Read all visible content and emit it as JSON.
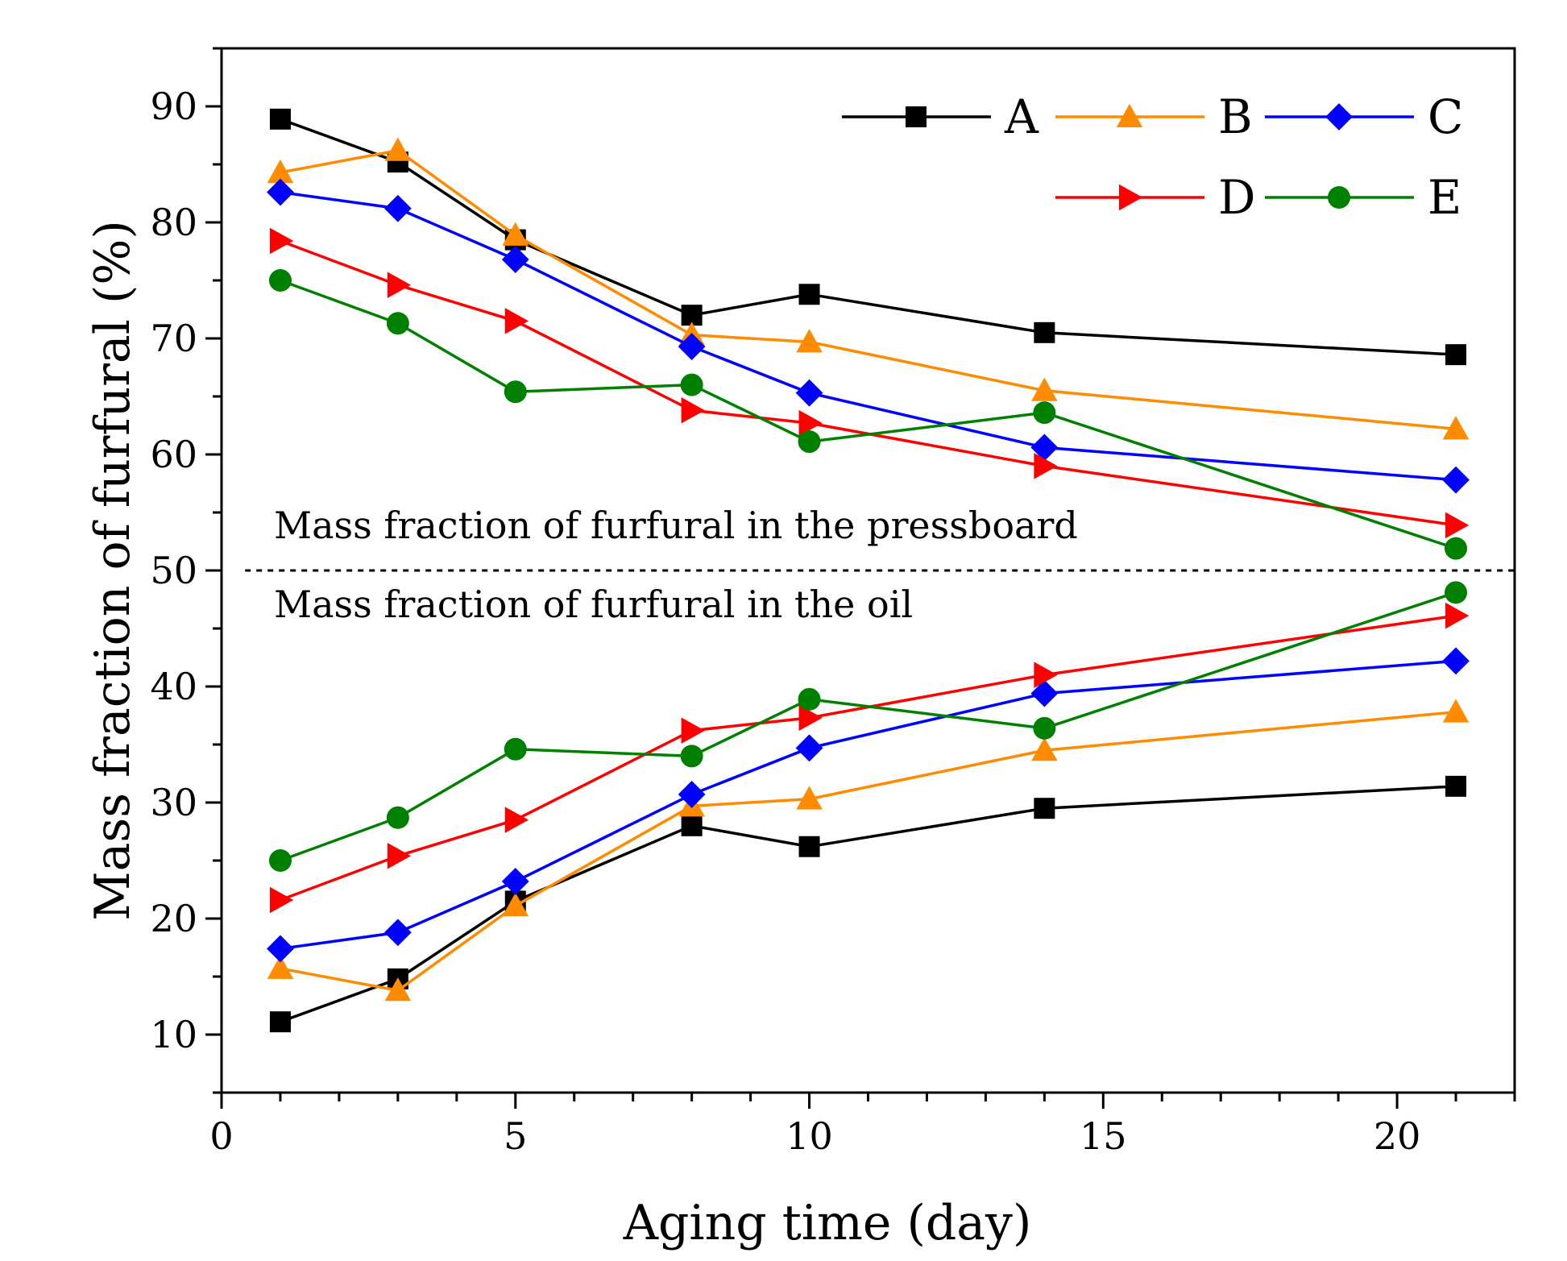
{
  "chart_data": {
    "type": "line",
    "title": "",
    "xlabel": "Aging time (day)",
    "ylabel": "Mass fraction of furfural (%)",
    "xlim": [
      0,
      22
    ],
    "ylim": [
      5,
      95
    ],
    "x_ticks": [
      0,
      5,
      10,
      15,
      20
    ],
    "x_tick_labels": [
      "0",
      "5",
      "10",
      "15",
      "20"
    ],
    "y_ticks": [
      10,
      20,
      30,
      40,
      50,
      60,
      70,
      80,
      90
    ],
    "y_tick_labels": [
      "10",
      "20",
      "30",
      "40",
      "50",
      "60",
      "70",
      "80",
      "90"
    ],
    "grid": false,
    "legend_position": "top-right",
    "x": [
      1,
      3,
      5,
      8,
      10,
      14,
      21
    ],
    "series": [
      {
        "name": "A",
        "color": "#000000",
        "marker": "square",
        "pressboard": [
          88.9,
          85.2,
          78.5,
          72.0,
          73.8,
          70.5,
          68.6
        ],
        "oil": [
          11.1,
          14.8,
          21.5,
          28.0,
          26.2,
          29.5,
          31.4
        ]
      },
      {
        "name": "B",
        "color": "#ff8c00",
        "marker": "triangle-up",
        "pressboard": [
          84.3,
          86.2,
          78.9,
          70.3,
          69.7,
          65.5,
          62.2
        ],
        "oil": [
          15.7,
          13.8,
          21.1,
          29.7,
          30.3,
          34.5,
          37.8
        ]
      },
      {
        "name": "C",
        "color": "#0000ff",
        "marker": "diamond",
        "pressboard": [
          82.6,
          81.2,
          76.8,
          69.3,
          65.3,
          60.6,
          57.8
        ],
        "oil": [
          17.4,
          18.8,
          23.2,
          30.7,
          34.7,
          39.4,
          42.2
        ]
      },
      {
        "name": "D",
        "color": "#ff0000",
        "marker": "triangle-right",
        "pressboard": [
          78.4,
          74.6,
          71.5,
          63.8,
          62.7,
          59.0,
          53.9
        ],
        "oil": [
          21.6,
          25.4,
          28.5,
          36.2,
          37.3,
          41.0,
          46.1
        ]
      },
      {
        "name": "E",
        "color": "#008000",
        "marker": "circle",
        "pressboard": [
          75.0,
          71.3,
          65.4,
          66.0,
          61.1,
          63.6,
          51.9
        ],
        "oil": [
          25.0,
          28.7,
          34.6,
          34.0,
          38.9,
          36.4,
          48.1
        ]
      }
    ],
    "reference_line": {
      "y": 50,
      "style": "dotted"
    },
    "annotations": {
      "upper": "Mass fraction of furfural in the pressboard",
      "lower": "Mass fraction of furfural in the oil"
    }
  }
}
